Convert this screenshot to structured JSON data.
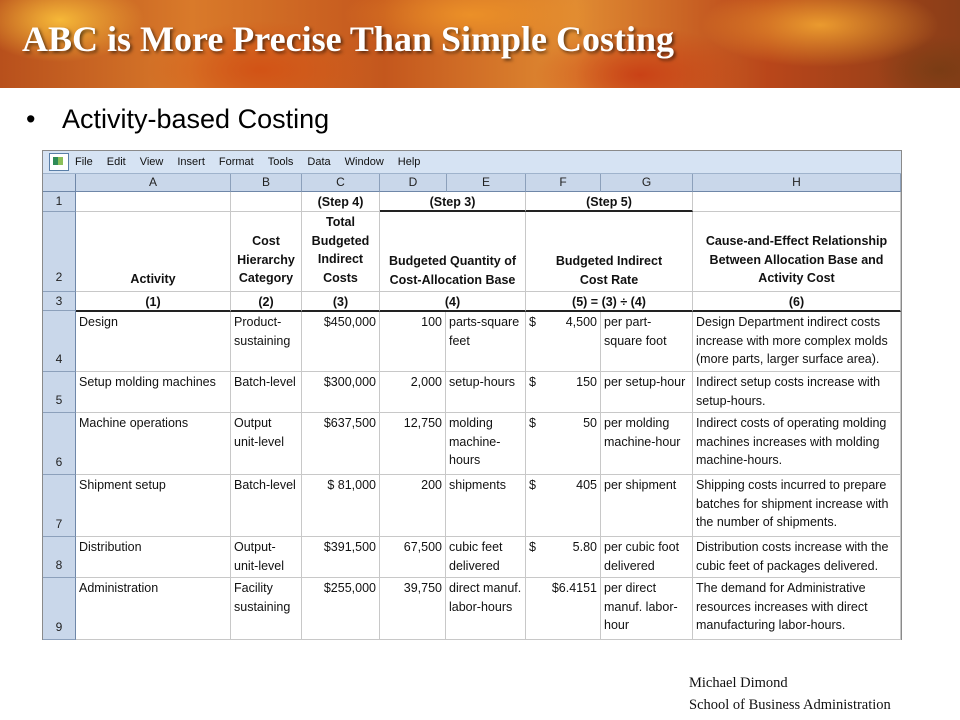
{
  "slide": {
    "title": "ABC is More Precise Than Simple Costing",
    "slide_number": "",
    "bullet_text": "Activity-based Costing"
  },
  "menu": [
    "File",
    "Edit",
    "View",
    "Insert",
    "Format",
    "Tools",
    "Data",
    "Window",
    "Help"
  ],
  "columns": [
    "A",
    "B",
    "C",
    "D",
    "E",
    "F",
    "G",
    "H"
  ],
  "row_numbers": [
    "1",
    "2",
    "3",
    "4",
    "5",
    "6",
    "7",
    "8",
    "9"
  ],
  "header": {
    "step4": "(Step 4)",
    "step3": "(Step 3)",
    "step5": "(Step 5)",
    "activity": "Activity",
    "cost_hierarchy": "Cost Hierarchy Category",
    "total_budgeted": "Total Budgeted Indirect Costs",
    "budgeted_quantity": "Budgeted Quantity of Cost-Allocation Base",
    "budgeted_rate": "Budgeted Indirect Cost Rate",
    "cause_effect": "Cause-and-Effect Relationship Between Allocation Base and Activity Cost",
    "n1": "(1)",
    "n2": "(2)",
    "n3": "(3)",
    "n4": "(4)",
    "n5": "(5) = (3) ÷ (4)",
    "n6": "(6)"
  },
  "rows": [
    {
      "activity": "Design",
      "category": "Product-sustaining",
      "cost": "$450,000",
      "qty": "100",
      "unit": "parts-square feet",
      "rate_sym": "$",
      "rate": "4,500",
      "rate_unit": "per part-square foot",
      "relation": "Design Department indirect costs increase with more complex molds (more parts, larger surface area)."
    },
    {
      "activity": "Setup molding machines",
      "category": "Batch-level",
      "cost": "$300,000",
      "qty": "2,000",
      "unit": "setup-hours",
      "rate_sym": "$",
      "rate": "150",
      "rate_unit": "per setup-hour",
      "relation": "Indirect setup costs increase with setup-hours."
    },
    {
      "activity": "Machine operations",
      "category": "Output unit-level",
      "cost": "$637,500",
      "qty": "12,750",
      "unit": "molding machine-hours",
      "rate_sym": "$",
      "rate": "50",
      "rate_unit": "per molding machine-hour",
      "relation": "Indirect costs of operating molding machines increases with molding machine-hours."
    },
    {
      "activity": "Shipment setup",
      "category": "Batch-level",
      "cost": "$  81,000",
      "qty": "200",
      "unit": "shipments",
      "rate_sym": "$",
      "rate": "405",
      "rate_unit": "per shipment",
      "relation": "Shipping costs incurred to prepare batches for shipment increase with the number of shipments."
    },
    {
      "activity": "Distribution",
      "category": "Output-unit-level",
      "cost": "$391,500",
      "qty": "67,500",
      "unit": "cubic feet delivered",
      "rate_sym": "$",
      "rate": "5.80",
      "rate_unit": "per cubic foot delivered",
      "relation": "Distribution costs increase with the cubic feet of packages delivered."
    },
    {
      "activity": "Administration",
      "category": "Facility sustaining",
      "cost": "$255,000",
      "qty": "39,750",
      "unit": "direct manuf. labor-hours",
      "rate_sym": "",
      "rate": "$6.4151",
      "rate_unit": "per direct manuf. labor-hour",
      "relation": "The demand for Administrative resources increases with direct manufacturing labor-hours."
    }
  ],
  "footer": {
    "name": "Michael Dimond",
    "school": "School of Business Administration"
  }
}
